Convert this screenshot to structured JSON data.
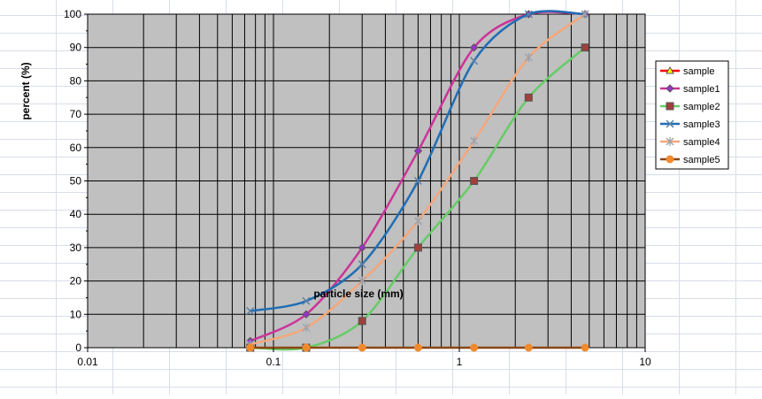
{
  "chart_data": {
    "type": "line",
    "title": "",
    "xlabel": "particle size (mm)",
    "ylabel": "percent (%)",
    "x_scale": "log",
    "xlim": [
      0.01,
      10
    ],
    "ylim": [
      0,
      100
    ],
    "x_ticks": [
      {
        "value": 0.01,
        "label": "0.01"
      },
      {
        "value": 0.1,
        "label": "0.1"
      },
      {
        "value": 1,
        "label": "1"
      },
      {
        "value": 10,
        "label": "10"
      }
    ],
    "y_ticks": [
      {
        "value": 0,
        "label": "0"
      },
      {
        "value": 10,
        "label": "10"
      },
      {
        "value": 20,
        "label": "20"
      },
      {
        "value": 30,
        "label": "30"
      },
      {
        "value": 40,
        "label": "40"
      },
      {
        "value": 50,
        "label": "50"
      },
      {
        "value": 60,
        "label": "60"
      },
      {
        "value": 70,
        "label": "70"
      },
      {
        "value": 80,
        "label": "80"
      },
      {
        "value": 90,
        "label": "90"
      },
      {
        "value": 100,
        "label": "100"
      }
    ],
    "grid": true,
    "plot_background": "#c0c0c0",
    "legend_position": "right",
    "series": [
      {
        "name": "sample",
        "color": "#ff0000",
        "marker": "triangle",
        "marker_color": "#ffff00",
        "x": [],
        "y": []
      },
      {
        "name": "sample1",
        "color": "#cc3399",
        "marker": "diamond",
        "marker_color": "#9933cc",
        "x": [
          0.075,
          0.15,
          0.3,
          0.6,
          1.2,
          2.36,
          4.75
        ],
        "y": [
          2,
          10,
          30,
          59,
          90,
          100,
          100
        ]
      },
      {
        "name": "sample2",
        "color": "#66cc66",
        "marker": "square",
        "marker_color": "#a0403c",
        "x": [
          0.075,
          0.15,
          0.3,
          0.6,
          1.2,
          2.36,
          4.75
        ],
        "y": [
          0,
          0,
          8,
          30,
          50,
          75,
          90
        ]
      },
      {
        "name": "sample3",
        "color": "#1f6db5",
        "marker": "x",
        "marker_color": "#5a7fa8",
        "x": [
          0.075,
          0.15,
          0.3,
          0.6,
          1.2,
          2.36,
          4.75
        ],
        "y": [
          11,
          14,
          25,
          50,
          86,
          100,
          100
        ]
      },
      {
        "name": "sample4",
        "color": "#f5a77a",
        "marker": "star",
        "marker_color": "#9aa3ad",
        "x": [
          0.075,
          0.15,
          0.3,
          0.6,
          1.2,
          2.36,
          4.75
        ],
        "y": [
          1,
          6,
          20,
          38,
          62,
          87,
          100
        ]
      },
      {
        "name": "sample5",
        "color": "#8b4513",
        "marker": "circle",
        "marker_color": "#f08a2c",
        "x": [
          0.075,
          0.15,
          0.3,
          0.6,
          1.2,
          2.36,
          4.75
        ],
        "y": [
          0,
          0,
          0,
          0,
          0,
          0,
          0
        ]
      }
    ]
  }
}
